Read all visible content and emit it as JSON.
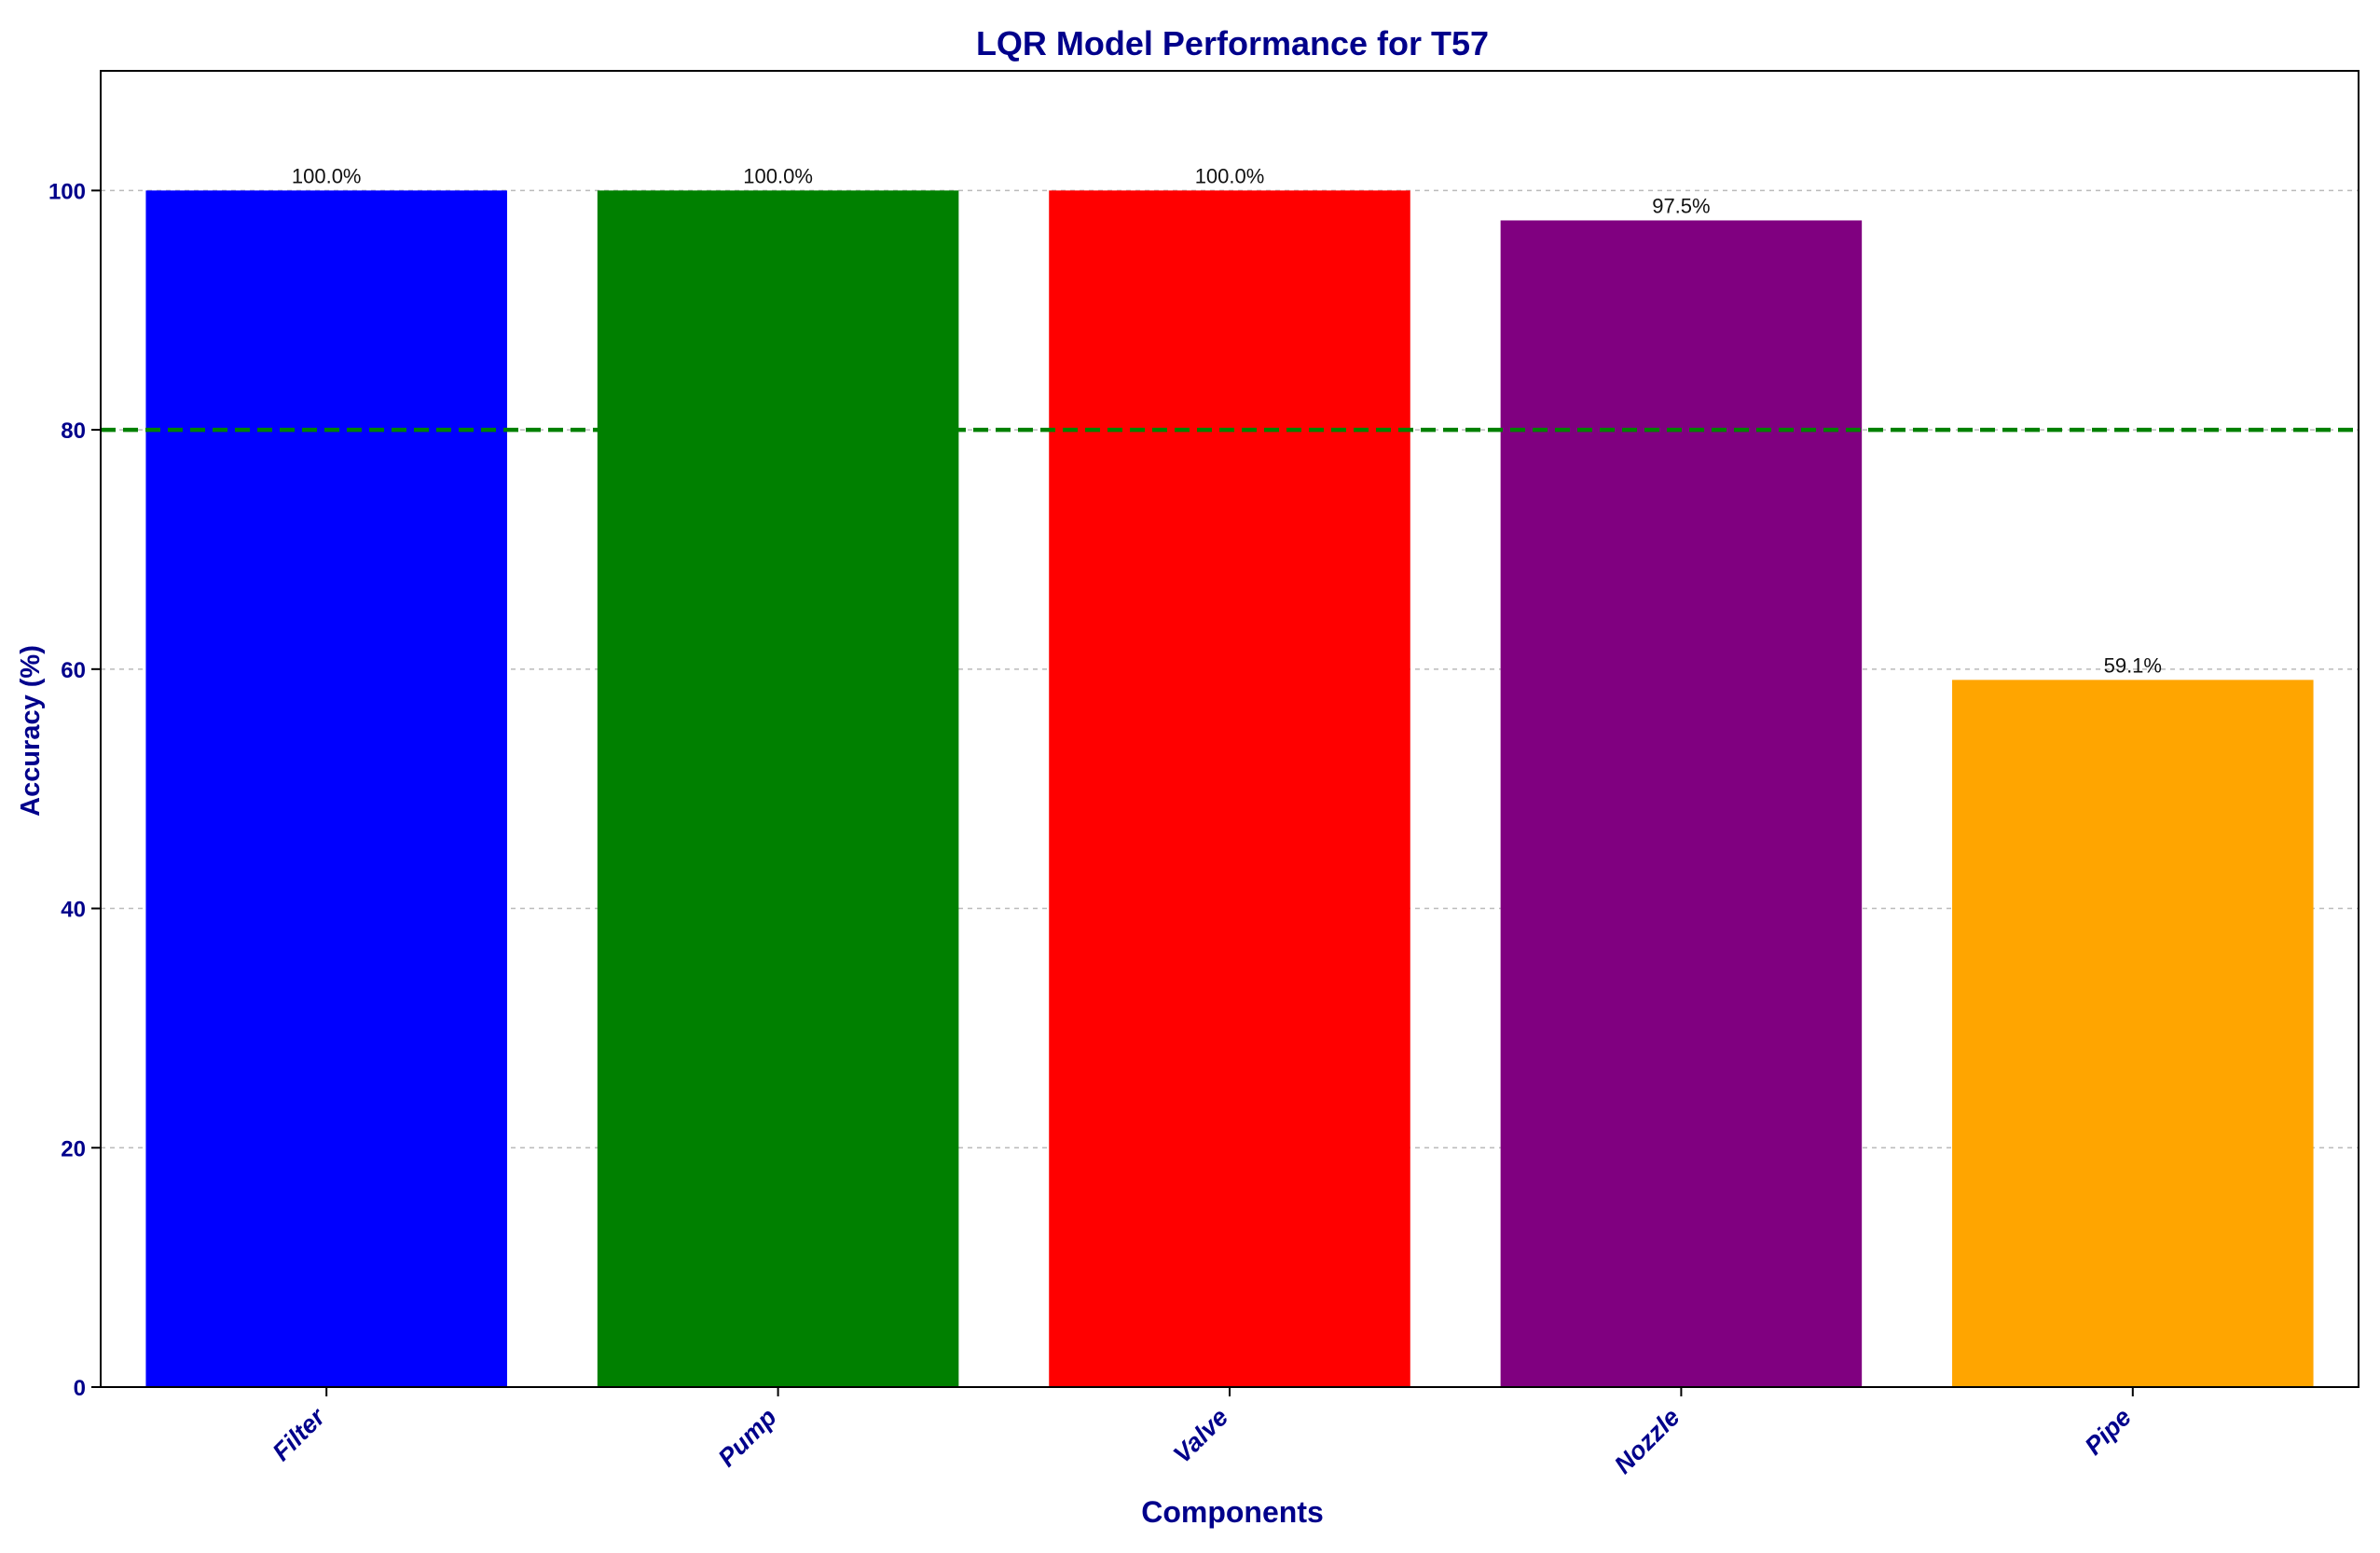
{
  "chart_data": {
    "type": "bar",
    "title": "LQR Model Performance for T57",
    "xlabel": "Components",
    "ylabel": "Accuracy (%)",
    "categories": [
      "Filter",
      "Pump",
      "Valve",
      "Nozzle",
      "Pipe"
    ],
    "values": [
      100.0,
      100.0,
      100.0,
      97.5,
      59.1
    ],
    "value_labels": [
      "100.0%",
      "100.0%",
      "100.0%",
      "97.5%",
      "59.1%"
    ],
    "colors": [
      "#0000ff",
      "#008000",
      "#ff0000",
      "#800080",
      "#ffa500"
    ],
    "ylim": [
      0,
      110
    ],
    "yticks": [
      0,
      20,
      40,
      60,
      80,
      100
    ],
    "ytick_labels": [
      "0",
      "20",
      "40",
      "60",
      "80",
      "100"
    ],
    "reference_line": {
      "y": 80,
      "color": "#008000",
      "style": "dashed"
    },
    "grid": {
      "y": true,
      "x": false
    },
    "legend": "none"
  }
}
